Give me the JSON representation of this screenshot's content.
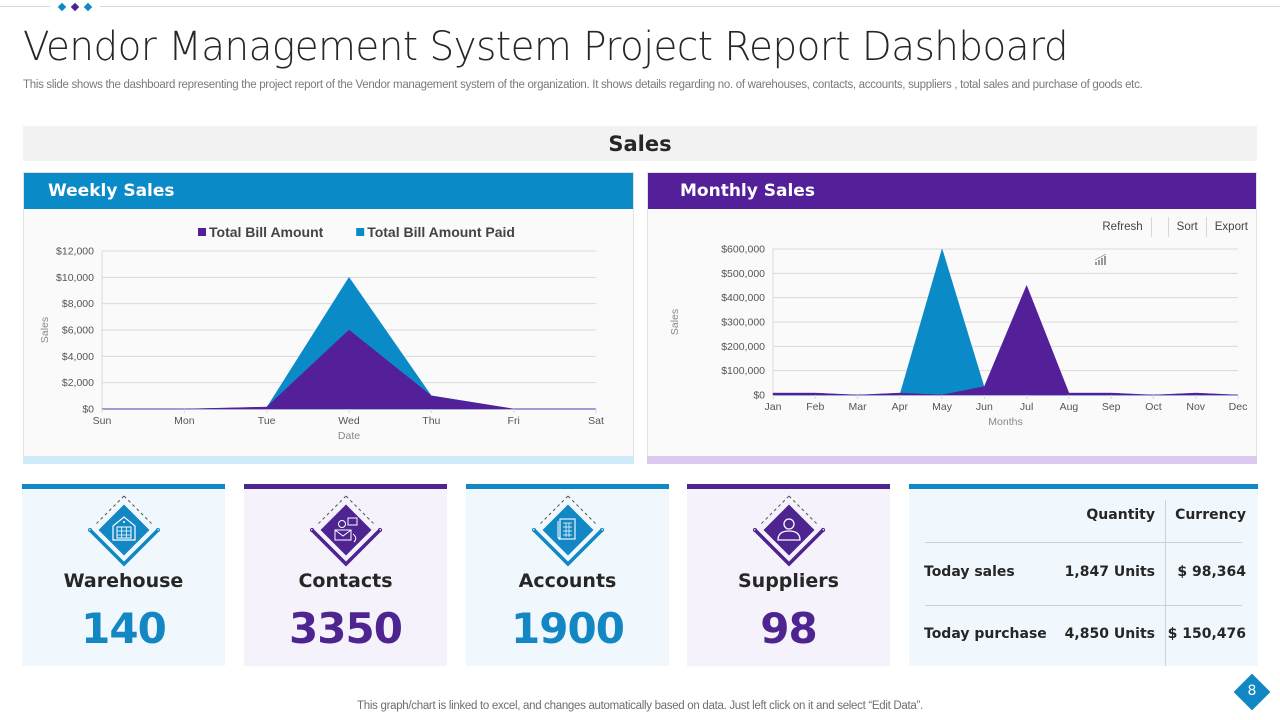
{
  "header": {
    "title": "Vendor Management System Project Report Dashboard",
    "subtitle": "This slide shows the dashboard representing the project report of the Vendor management system of the organization. It shows details regarding no. of warehouses, contacts, accounts, suppliers , total sales and purchase of goods etc.",
    "decor_dot_colors": [
      "#1287c4",
      "#4d2490",
      "#1287c4"
    ]
  },
  "section_title": "Sales",
  "colors": {
    "blue": "#0b8ac8",
    "purple": "#53209a"
  },
  "weekly_panel": {
    "title": "Weekly Sales"
  },
  "monthly_panel": {
    "title": "Monthly Sales",
    "tools": [
      {
        "label": "Refresh",
        "icon": ""
      },
      {
        "label": "",
        "icon": "bar-chart-icon"
      },
      {
        "label": "Sort",
        "icon": ""
      },
      {
        "label": "Export",
        "icon": ""
      }
    ]
  },
  "chart_data": [
    {
      "type": "area",
      "title": "Weekly Sales",
      "xlabel": "Date",
      "ylabel": "Sales",
      "categories": [
        "Sun",
        "Mon",
        "Tue",
        "Wed",
        "Thu",
        "Fri",
        "Sat"
      ],
      "ylim": [
        0,
        12000
      ],
      "yticks": [
        0,
        2000,
        4000,
        6000,
        8000,
        10000,
        12000
      ],
      "ytick_labels": [
        "$0",
        "$2,000",
        "$4,000",
        "$6,000",
        "$8,000",
        "$10,000",
        "$12,000"
      ],
      "grid": true,
      "legend": "top-center",
      "series": [
        {
          "name": "Total Bill Amount Paid",
          "color": "#0b8ac8",
          "values": [
            0,
            0,
            100,
            10000,
            1000,
            0,
            0
          ]
        },
        {
          "name": "Total Bill Amount",
          "color": "#53209a",
          "values": [
            0,
            0,
            150,
            6000,
            1000,
            0,
            0
          ]
        }
      ],
      "legend_order": [
        "Total Bill Amount",
        "Total Bill Amount Paid"
      ]
    },
    {
      "type": "area",
      "title": "Monthly Sales",
      "xlabel": "Months",
      "ylabel": "Sales",
      "categories": [
        "Jan",
        "Feb",
        "Mar",
        "Apr",
        "May",
        "Jun",
        "Jul",
        "Aug",
        "Sep",
        "Oct",
        "Nov",
        "Dec"
      ],
      "ylim": [
        0,
        600000
      ],
      "yticks": [
        0,
        100000,
        200000,
        300000,
        400000,
        500000,
        600000
      ],
      "ytick_labels": [
        "$0",
        "$100,000",
        "$200,000",
        "$300,000",
        "$400,000",
        "$500,000",
        "$600,000"
      ],
      "grid": true,
      "legend": "none",
      "series": [
        {
          "name": "Total Bill Amount Paid",
          "color": "#0b8ac8",
          "values": [
            0,
            0,
            0,
            0,
            600000,
            30000,
            0,
            0,
            0,
            0,
            0,
            0
          ]
        },
        {
          "name": "Total Bill Amount",
          "color": "#53209a",
          "values": [
            8000,
            8000,
            0,
            8000,
            0,
            35000,
            450000,
            8000,
            8000,
            0,
            8000,
            0
          ]
        }
      ]
    }
  ],
  "kpis": [
    {
      "label": "Warehouse",
      "value": "140",
      "theme": "blue",
      "icon": "warehouse-icon"
    },
    {
      "label": "Contacts",
      "value": "3350",
      "theme": "purple",
      "icon": "contacts-icon"
    },
    {
      "label": "Accounts",
      "value": "1900",
      "theme": "blue",
      "icon": "accounts-icon"
    },
    {
      "label": "Suppliers",
      "value": "98",
      "theme": "purple",
      "icon": "suppliers-icon"
    }
  ],
  "summary_table": {
    "headers": [
      "",
      "Quantity",
      "Currency"
    ],
    "rows": [
      {
        "label": "Today sales",
        "quantity": "1,847 Units",
        "currency": "$ 98,364"
      },
      {
        "label": "Today purchase",
        "quantity": "4,850 Units",
        "currency": "$ 150,476"
      }
    ]
  },
  "footnote": "This graph/chart is linked to excel,  and changes automatically based on data. Just left click on it and select “Edit Data”.",
  "page_number": "8"
}
